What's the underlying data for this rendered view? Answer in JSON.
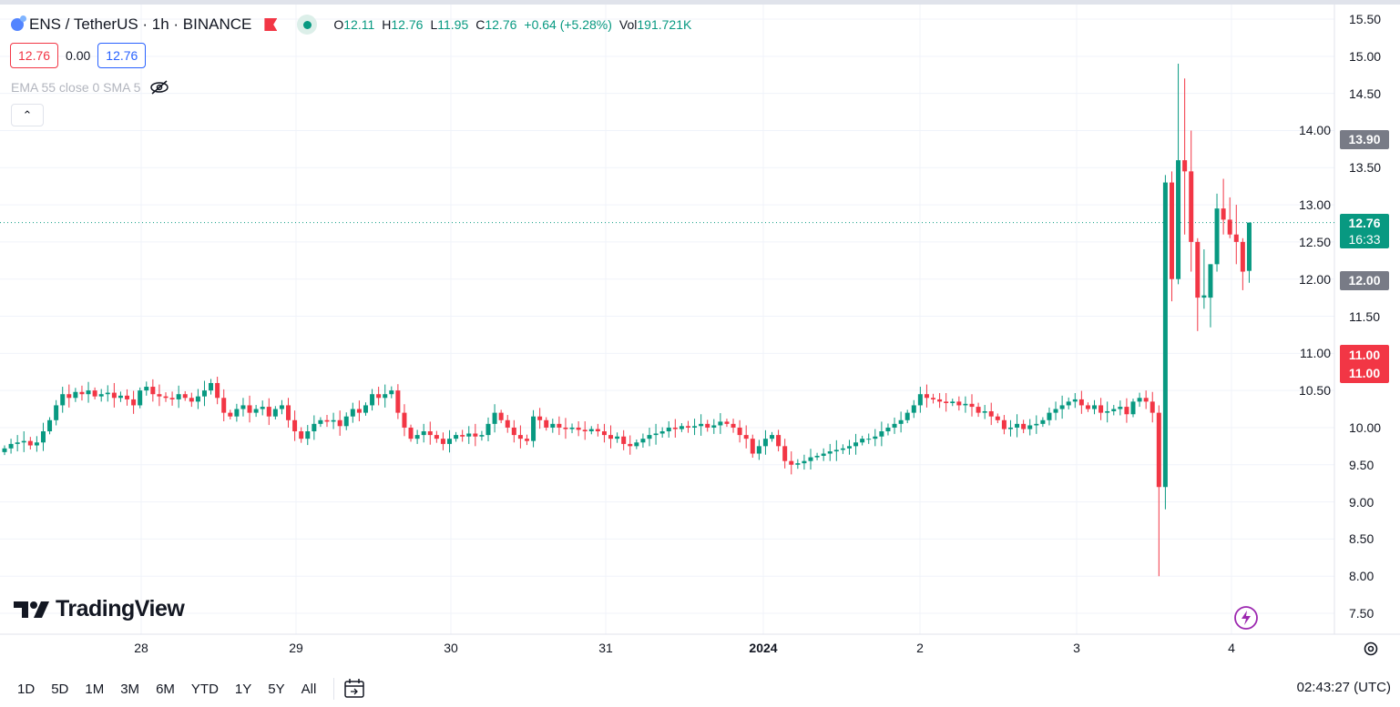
{
  "header": {
    "symbol": "ENS / TetherUS · 1h · BINANCE",
    "ohlc": [
      {
        "k": "O",
        "v": "12.11"
      },
      {
        "k": "H",
        "v": "12.76"
      },
      {
        "k": "L",
        "v": "11.95"
      },
      {
        "k": "C",
        "v": "12.76"
      },
      {
        "k": "",
        "v": "+0.64 (+5.28%)"
      },
      {
        "k": "Vol",
        "v": "191.721K"
      }
    ]
  },
  "inputs": {
    "sell": "12.76",
    "spread": "0.00",
    "buy": "12.76"
  },
  "indicator": {
    "label": "EMA 55 close 0 SMA 5"
  },
  "colors": {
    "up": "#089981",
    "down": "#f23645",
    "grid": "#f0f3fa"
  },
  "price_axis": {
    "ticks": [
      "15.50",
      "15.00",
      "14.50",
      "14.00",
      "13.50",
      "13.00",
      "12.50",
      "12.00",
      "11.50",
      "11.00",
      "10.50",
      "10.00",
      "9.50",
      "9.00",
      "8.50",
      "8.00",
      "7.50"
    ],
    "tags": {
      "high": "13.90",
      "last": "12.76",
      "countdown": "16:33",
      "low": "12.00",
      "alert1": "11.00",
      "alert2": "11.00"
    }
  },
  "time_axis": {
    "labels": [
      "28",
      "29",
      "30",
      "31",
      "2024",
      "2",
      "3",
      "4"
    ]
  },
  "chart_data": {
    "type": "candlestick",
    "ylim": [
      7.5,
      15.5
    ],
    "closes": [
      9.72,
      9.78,
      9.8,
      9.82,
      9.76,
      9.8,
      9.95,
      10.1,
      10.3,
      10.45,
      10.4,
      10.48,
      10.45,
      10.5,
      10.42,
      10.45,
      10.47,
      10.4,
      10.43,
      10.38,
      10.3,
      10.5,
      10.55,
      10.45,
      10.42,
      10.4,
      10.38,
      10.45,
      10.4,
      10.35,
      10.42,
      10.5,
      10.6,
      10.4,
      10.2,
      10.15,
      10.25,
      10.3,
      10.2,
      10.25,
      10.28,
      10.15,
      10.25,
      10.3,
      10.1,
      9.95,
      9.85,
      9.95,
      10.05,
      10.1,
      10.08,
      10.1,
      10.02,
      10.15,
      10.25,
      10.2,
      10.3,
      10.45,
      10.4,
      10.45,
      10.5,
      10.2,
      10.0,
      9.85,
      9.9,
      9.95,
      9.9,
      9.85,
      9.78,
      9.85,
      9.9,
      9.88,
      9.92,
      9.88,
      9.9,
      10.05,
      10.2,
      10.1,
      10.0,
      9.9,
      9.85,
      9.82,
      10.15,
      10.1,
      10.0,
      10.05,
      10.0,
      9.98,
      10.0,
      9.97,
      9.95,
      9.98,
      9.95,
      9.9,
      9.85,
      9.88,
      9.78,
      9.75,
      9.8,
      9.85,
      9.9,
      9.92,
      9.95,
      10.0,
      9.98,
      10.02,
      10.0,
      10.02,
      10.05,
      10.0,
      10.03,
      10.08,
      10.05,
      10.0,
      9.9,
      9.85,
      9.65,
      9.75,
      9.85,
      9.9,
      9.75,
      9.55,
      9.5,
      9.52,
      9.55,
      9.6,
      9.62,
      9.65,
      9.68,
      9.7,
      9.72,
      9.75,
      9.8,
      9.85,
      9.85,
      9.88,
      9.95,
      10.0,
      10.05,
      10.1,
      10.2,
      10.3,
      10.45,
      10.4,
      10.38,
      10.35,
      10.33,
      10.35,
      10.3,
      10.32,
      10.28,
      10.2,
      10.22,
      10.15,
      10.1,
      9.98,
      10.0,
      10.05,
      9.98,
      10.03,
      10.05,
      10.1,
      10.2,
      10.25,
      10.3,
      10.35,
      10.38,
      10.3,
      10.25,
      10.3,
      10.2,
      10.22,
      10.25,
      10.28,
      10.18,
      10.35,
      10.4,
      10.35,
      10.2
    ],
    "recent_ohlc": [
      [
        10.2,
        10.3,
        8.0,
        9.2
      ],
      [
        9.2,
        13.4,
        8.9,
        13.3
      ],
      [
        13.3,
        13.45,
        11.7,
        12.0
      ],
      [
        12.0,
        14.9,
        11.93,
        13.6
      ],
      [
        13.6,
        14.7,
        12.6,
        13.45
      ],
      [
        13.45,
        14.0,
        12.1,
        12.5
      ],
      [
        12.5,
        12.55,
        11.3,
        11.75
      ],
      [
        11.75,
        12.4,
        11.6,
        11.78
      ],
      [
        11.75,
        12.2,
        11.35,
        12.2
      ],
      [
        12.2,
        13.15,
        12.1,
        12.95
      ],
      [
        12.95,
        13.35,
        12.6,
        12.8
      ],
      [
        12.8,
        13.1,
        12.55,
        12.6
      ],
      [
        12.6,
        13.0,
        12.2,
        12.5
      ],
      [
        12.5,
        12.55,
        11.85,
        12.1
      ],
      [
        12.11,
        12.76,
        11.95,
        12.76
      ]
    ],
    "last_price": 12.76
  },
  "branding": {
    "logo": "TradingView"
  },
  "bottom": {
    "ranges": [
      "1D",
      "5D",
      "1M",
      "3M",
      "6M",
      "YTD",
      "1Y",
      "5Y",
      "All"
    ],
    "clock": "02:43:27 (UTC)"
  }
}
